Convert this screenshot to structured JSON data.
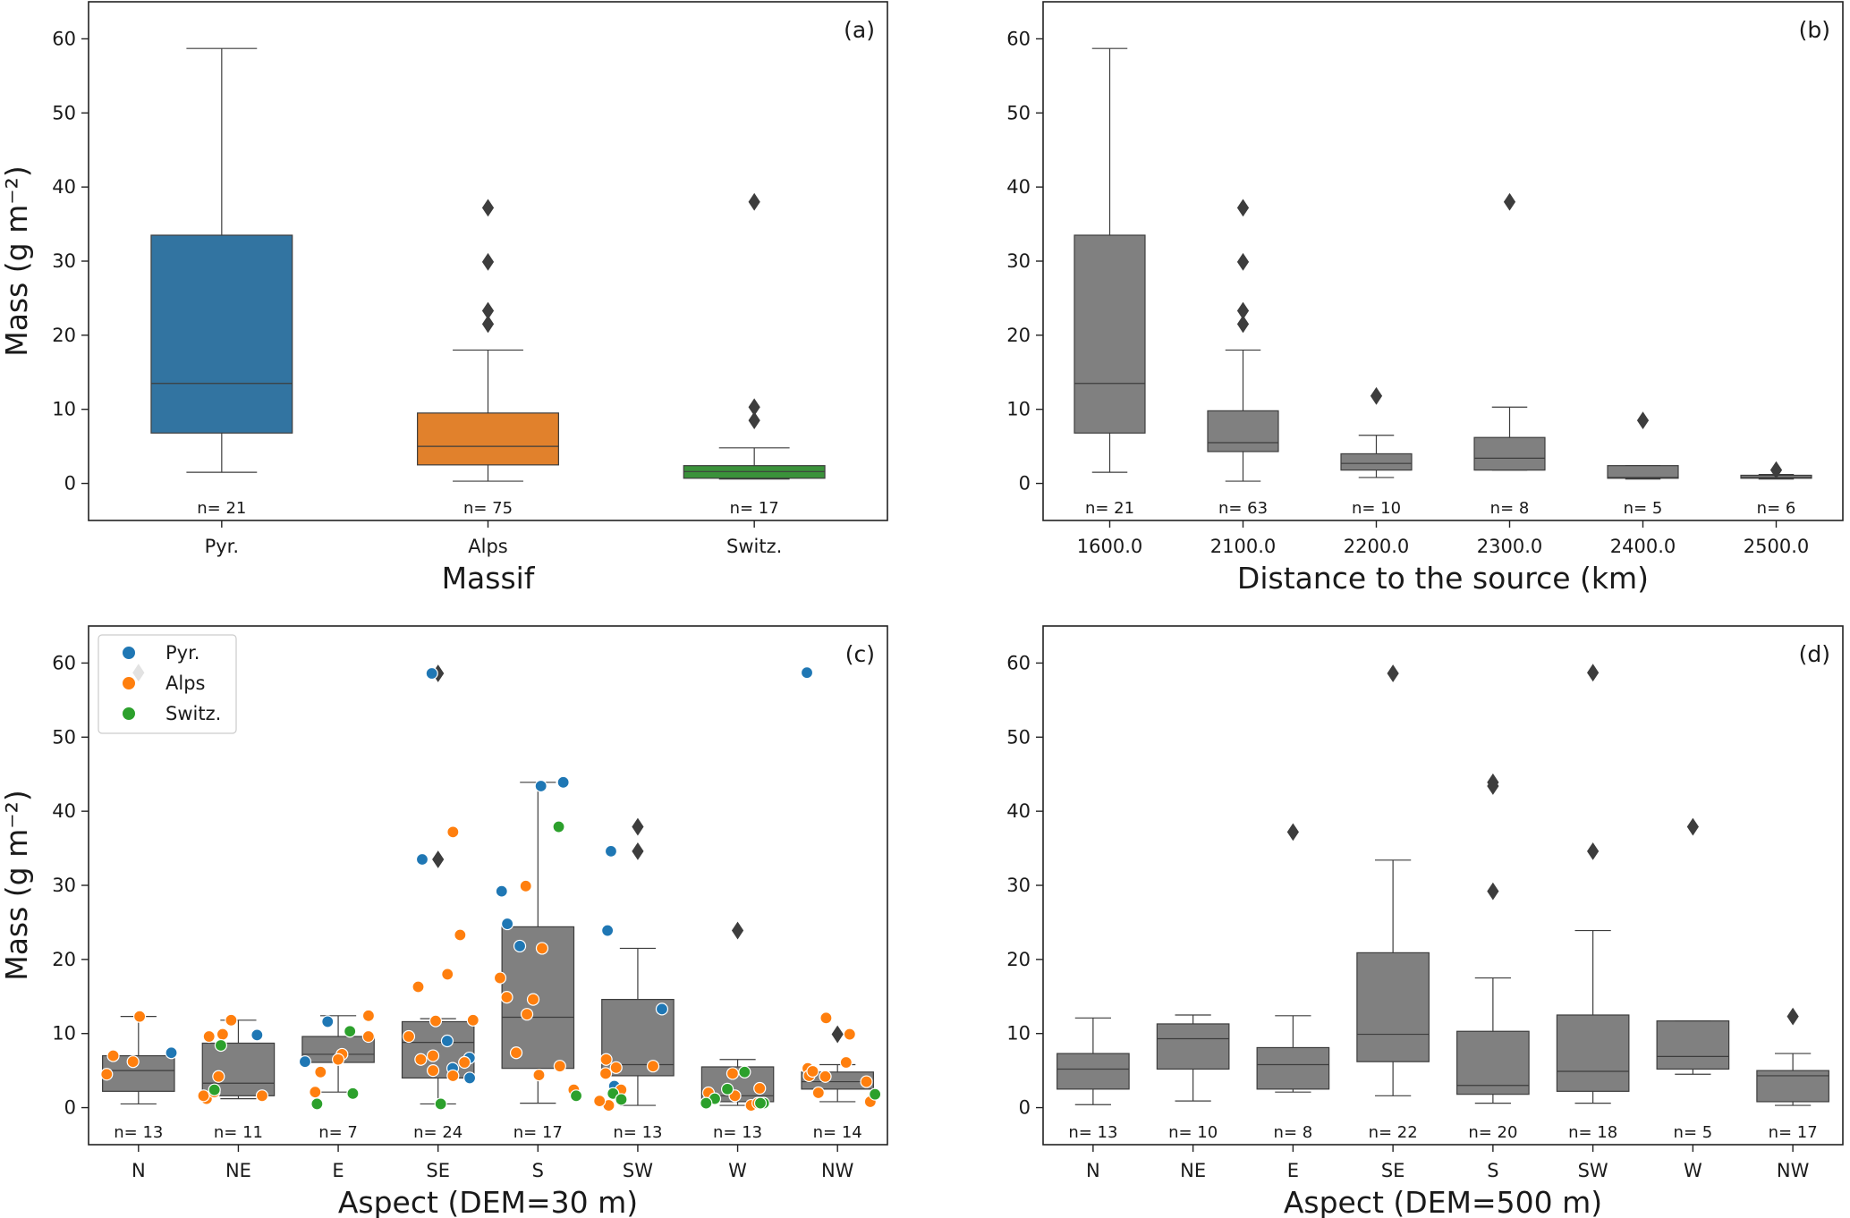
{
  "chart_data": [
    {
      "panel_label": "(a)",
      "type": "box",
      "xlabel": "Massif",
      "ylabel": "Mass (g m⁻²)",
      "ylim": [
        -5,
        65
      ],
      "yticks": [
        0,
        10,
        20,
        30,
        40,
        50,
        60
      ],
      "categories": [
        "Pyr.",
        "Alps",
        "Switz."
      ],
      "colors": [
        "#3274a1",
        "#e1812c",
        "#3a923a"
      ],
      "boxes": [
        {
          "q1": 6.8,
          "median": 13.5,
          "q3": 33.5,
          "whisker_low": 1.5,
          "whisker_high": 58.7,
          "outliers": [],
          "n": "n= 21"
        },
        {
          "q1": 2.5,
          "median": 5.0,
          "q3": 9.5,
          "whisker_low": 0.3,
          "whisker_high": 18.0,
          "outliers": [
            21.5,
            23.3,
            29.9,
            37.2
          ],
          "n": "n= 75"
        },
        {
          "q1": 0.7,
          "median": 1.6,
          "q3": 2.4,
          "whisker_low": 0.6,
          "whisker_high": 4.8,
          "outliers": [
            8.5,
            10.3,
            38.0
          ],
          "n": "n= 17"
        }
      ]
    },
    {
      "panel_label": "(b)",
      "type": "box",
      "xlabel": "Distance to the source (km)",
      "ylabel": "",
      "ylim": [
        -5,
        65
      ],
      "yticks": [
        0,
        10,
        20,
        30,
        40,
        50,
        60
      ],
      "categories": [
        "1600.0",
        "2100.0",
        "2200.0",
        "2300.0",
        "2400.0",
        "2500.0"
      ],
      "colors": [
        "#808080"
      ],
      "boxes": [
        {
          "q1": 6.8,
          "median": 13.5,
          "q3": 33.5,
          "whisker_low": 1.5,
          "whisker_high": 58.7,
          "outliers": [],
          "n": "n= 21"
        },
        {
          "q1": 4.3,
          "median": 5.5,
          "q3": 9.8,
          "whisker_low": 0.3,
          "whisker_high": 18.0,
          "outliers": [
            21.5,
            23.3,
            29.9,
            37.2
          ],
          "n": "n= 63"
        },
        {
          "q1": 1.8,
          "median": 2.7,
          "q3": 4.0,
          "whisker_low": 0.8,
          "whisker_high": 6.5,
          "outliers": [
            11.8
          ],
          "n": "n= 10"
        },
        {
          "q1": 1.8,
          "median": 3.4,
          "q3": 6.2,
          "whisker_low": 1.8,
          "whisker_high": 10.3,
          "outliers": [
            38.0
          ],
          "n": "n= 8"
        },
        {
          "q1": 0.7,
          "median": 0.8,
          "q3": 2.4,
          "whisker_low": 0.6,
          "whisker_high": 2.4,
          "outliers": [
            8.5
          ],
          "n": "n= 5"
        },
        {
          "q1": 0.7,
          "median": 0.8,
          "q3": 1.1,
          "whisker_low": 0.6,
          "whisker_high": 1.2,
          "outliers": [
            1.8
          ],
          "n": "n= 6"
        }
      ]
    },
    {
      "panel_label": "(c)",
      "type": "box+scatter",
      "xlabel": "Aspect (DEM=30 m)",
      "ylabel": "Mass (g m⁻²)",
      "ylim": [
        -5,
        65
      ],
      "yticks": [
        0,
        10,
        20,
        30,
        40,
        50,
        60
      ],
      "categories": [
        "N",
        "NE",
        "E",
        "SE",
        "S",
        "SW",
        "W",
        "NW"
      ],
      "colors": [
        "#808080"
      ],
      "legend": {
        "position": "upper-left",
        "entries": [
          "Pyr.",
          "Alps",
          "Switz."
        ],
        "colors": [
          "#1f77b4",
          "#ff7f0e",
          "#2ca02c"
        ]
      },
      "boxes": [
        {
          "q1": 2.2,
          "median": 5.0,
          "q3": 7.0,
          "whisker_low": 0.5,
          "whisker_high": 12.3,
          "outliers": [
            58.7
          ],
          "n": "n= 13"
        },
        {
          "q1": 1.6,
          "median": 3.3,
          "q3": 8.7,
          "whisker_low": 1.2,
          "whisker_high": 11.8,
          "outliers": [],
          "n": "n= 11"
        },
        {
          "q1": 6.1,
          "median": 7.2,
          "q3": 9.6,
          "whisker_low": 2.1,
          "whisker_high": 12.4,
          "outliers": [],
          "n": "n= 7"
        },
        {
          "q1": 4.0,
          "median": 8.8,
          "q3": 11.6,
          "whisker_low": 0.5,
          "whisker_high": 12.0,
          "outliers": [
            33.5,
            58.6
          ],
          "n": "n= 24"
        },
        {
          "q1": 5.3,
          "median": 12.2,
          "q3": 24.4,
          "whisker_low": 0.6,
          "whisker_high": 43.9,
          "outliers": [],
          "n": "n= 17"
        },
        {
          "q1": 4.3,
          "median": 5.8,
          "q3": 14.6,
          "whisker_low": 0.3,
          "whisker_high": 21.5,
          "outliers": [
            34.6,
            37.9
          ],
          "n": "n= 13"
        },
        {
          "q1": 0.8,
          "median": 1.6,
          "q3": 5.5,
          "whisker_low": 0.3,
          "whisker_high": 6.5,
          "outliers": [
            23.9
          ],
          "n": "n= 13"
        },
        {
          "q1": 2.5,
          "median": 3.5,
          "q3": 4.8,
          "whisker_low": 0.8,
          "whisker_high": 5.8,
          "outliers": [
            9.9
          ],
          "n": "n= 14"
        }
      ],
      "points": [
        [
          0,
          0,
          7.4
        ],
        [
          0,
          1,
          6.2
        ],
        [
          0,
          1,
          7.0
        ],
        [
          0,
          1,
          4.5
        ],
        [
          0,
          1,
          12.3
        ],
        [
          1,
          0,
          9.8
        ],
        [
          1,
          1,
          11.8
        ],
        [
          1,
          1,
          9.6
        ],
        [
          1,
          1,
          1.6
        ],
        [
          1,
          1,
          1.2
        ],
        [
          1,
          1,
          4.2
        ],
        [
          1,
          1,
          1.6
        ],
        [
          1,
          1,
          9.9
        ],
        [
          1,
          1,
          2.1
        ],
        [
          1,
          2,
          8.4
        ],
        [
          1,
          2,
          2.4
        ],
        [
          2,
          0,
          6.2
        ],
        [
          2,
          0,
          11.6
        ],
        [
          2,
          1,
          12.4
        ],
        [
          2,
          1,
          9.6
        ],
        [
          2,
          1,
          7.2
        ],
        [
          2,
          1,
          6.5
        ],
        [
          2,
          1,
          4.8
        ],
        [
          2,
          1,
          2.1
        ],
        [
          2,
          2,
          0.5
        ],
        [
          2,
          2,
          1.9
        ],
        [
          2,
          2,
          10.3
        ],
        [
          3,
          0,
          58.6
        ],
        [
          3,
          0,
          33.5
        ],
        [
          3,
          0,
          6.7
        ],
        [
          3,
          0,
          9.0
        ],
        [
          3,
          0,
          4.0
        ],
        [
          3,
          0,
          5.3
        ],
        [
          3,
          1,
          4.3
        ],
        [
          3,
          1,
          11.7
        ],
        [
          3,
          1,
          11.8
        ],
        [
          3,
          1,
          23.3
        ],
        [
          3,
          1,
          18.0
        ],
        [
          3,
          1,
          16.3
        ],
        [
          3,
          1,
          9.6
        ],
        [
          3,
          1,
          6.1
        ],
        [
          3,
          1,
          7.0
        ],
        [
          3,
          1,
          5.0
        ],
        [
          3,
          1,
          6.5
        ],
        [
          3,
          1,
          37.2
        ],
        [
          3,
          2,
          0.5
        ],
        [
          4,
          0,
          43.9
        ],
        [
          4,
          0,
          43.4
        ],
        [
          4,
          0,
          29.2
        ],
        [
          4,
          0,
          24.8
        ],
        [
          4,
          0,
          21.8
        ],
        [
          4,
          1,
          2.4
        ],
        [
          4,
          1,
          29.9
        ],
        [
          4,
          1,
          14.9
        ],
        [
          4,
          1,
          17.5
        ],
        [
          4,
          1,
          14.6
        ],
        [
          4,
          1,
          12.6
        ],
        [
          4,
          1,
          4.4
        ],
        [
          4,
          1,
          5.6
        ],
        [
          4,
          1,
          21.5
        ],
        [
          4,
          1,
          7.4
        ],
        [
          4,
          2,
          1.6
        ],
        [
          4,
          2,
          37.9
        ],
        [
          5,
          0,
          34.6
        ],
        [
          5,
          0,
          23.9
        ],
        [
          5,
          0,
          13.3
        ],
        [
          5,
          0,
          2.9
        ],
        [
          5,
          1,
          4.6
        ],
        [
          5,
          1,
          5.4
        ],
        [
          5,
          1,
          0.3
        ],
        [
          5,
          1,
          2.4
        ],
        [
          5,
          1,
          5.6
        ],
        [
          5,
          1,
          6.5
        ],
        [
          5,
          1,
          0.9
        ],
        [
          5,
          2,
          1.9
        ],
        [
          5,
          2,
          1.1
        ],
        [
          6,
          1,
          0.3
        ],
        [
          6,
          1,
          4.6
        ],
        [
          6,
          1,
          2.6
        ],
        [
          6,
          1,
          1.6
        ],
        [
          6,
          1,
          0.6
        ],
        [
          6,
          1,
          2.0
        ],
        [
          6,
          2,
          0.6
        ],
        [
          6,
          2,
          1.2
        ],
        [
          6,
          2,
          0.6
        ],
        [
          6,
          2,
          4.8
        ],
        [
          6,
          2,
          2.5
        ],
        [
          6,
          2,
          0.6
        ],
        [
          7,
          0,
          58.7
        ],
        [
          7,
          1,
          12.1
        ],
        [
          7,
          1,
          9.9
        ],
        [
          7,
          1,
          6.1
        ],
        [
          7,
          1,
          5.3
        ],
        [
          7,
          1,
          3.5
        ],
        [
          7,
          1,
          4.3
        ],
        [
          7,
          1,
          0.8
        ],
        [
          7,
          1,
          4.9
        ],
        [
          7,
          1,
          4.2
        ],
        [
          7,
          1,
          2.0
        ],
        [
          7,
          2,
          1.8
        ]
      ]
    },
    {
      "panel_label": "(d)",
      "type": "box",
      "xlabel": "Aspect (DEM=500 m)",
      "ylabel": "",
      "ylim": [
        -5,
        65
      ],
      "yticks": [
        0,
        10,
        20,
        30,
        40,
        50,
        60
      ],
      "categories": [
        "N",
        "NE",
        "E",
        "SE",
        "S",
        "SW",
        "W",
        "NW"
      ],
      "colors": [
        "#808080"
      ],
      "boxes": [
        {
          "q1": 2.5,
          "median": 5.2,
          "q3": 7.3,
          "whisker_low": 0.4,
          "whisker_high": 12.1,
          "outliers": [],
          "n": "n= 13"
        },
        {
          "q1": 5.2,
          "median": 9.3,
          "q3": 11.3,
          "whisker_low": 0.9,
          "whisker_high": 12.5,
          "outliers": [],
          "n": "n= 10"
        },
        {
          "q1": 2.5,
          "median": 5.8,
          "q3": 8.1,
          "whisker_low": 2.1,
          "whisker_high": 12.4,
          "outliers": [
            37.2
          ],
          "n": "n= 8"
        },
        {
          "q1": 6.2,
          "median": 9.9,
          "q3": 20.9,
          "whisker_low": 1.6,
          "whisker_high": 33.4,
          "outliers": [
            58.6
          ],
          "n": "n= 22"
        },
        {
          "q1": 1.8,
          "median": 3.0,
          "q3": 10.3,
          "whisker_low": 0.6,
          "whisker_high": 17.5,
          "outliers": [
            29.2,
            43.4,
            43.9
          ],
          "n": "n= 20"
        },
        {
          "q1": 2.2,
          "median": 4.9,
          "q3": 12.5,
          "whisker_low": 0.6,
          "whisker_high": 23.9,
          "outliers": [
            34.6,
            58.7
          ],
          "n": "n= 18"
        },
        {
          "q1": 5.2,
          "median": 6.9,
          "q3": 11.7,
          "whisker_low": 4.5,
          "whisker_high": 11.7,
          "outliers": [
            37.9
          ],
          "n": "n= 5"
        },
        {
          "q1": 0.8,
          "median": 4.3,
          "q3": 5.0,
          "whisker_low": 0.3,
          "whisker_high": 7.3,
          "outliers": [
            12.3
          ],
          "n": "n= 17"
        }
      ]
    }
  ]
}
